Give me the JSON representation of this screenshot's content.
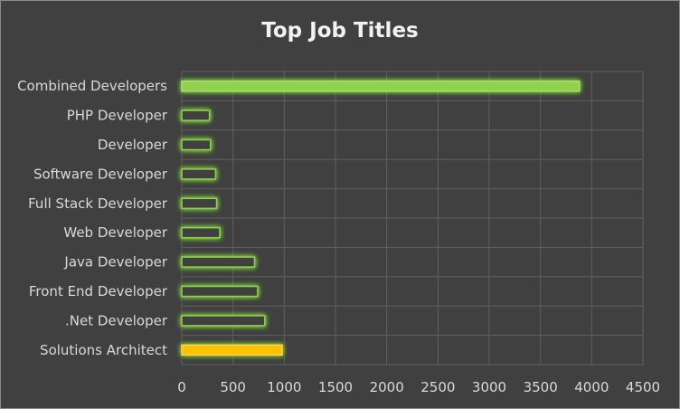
{
  "chart_data": {
    "type": "bar",
    "orientation": "horizontal",
    "title": "Top Job Titles",
    "xlabel": "",
    "ylabel": "",
    "xlim": [
      0,
      4500
    ],
    "x_ticks": [
      0,
      500,
      1000,
      1500,
      2000,
      2500,
      3000,
      3500,
      4000,
      4500
    ],
    "grid": true,
    "legend": "none",
    "categories": [
      "Combined Developers",
      "PHP Developer",
      "Developer",
      "Software Developer",
      "Full Stack Developer",
      "Web Developer",
      "Java Developer",
      "Front End Developer",
      ".Net Developer",
      "Solutions Architect"
    ],
    "values": [
      3880,
      270,
      280,
      330,
      340,
      370,
      710,
      740,
      810,
      980
    ],
    "colors": {
      "highlight_bar": "#92d050",
      "outline_bar": "#4b7a2a",
      "accent_bar": "#ffc000",
      "glow": "#7fdc3a",
      "grid": "#5f5f5f",
      "text": "#d9d9d9",
      "background": "#404040"
    }
  }
}
